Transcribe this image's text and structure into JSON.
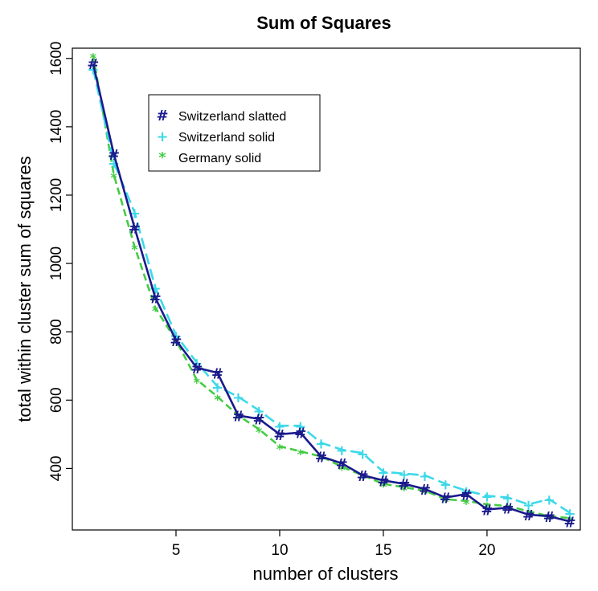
{
  "chart_data": {
    "type": "line",
    "title": "Sum of Squares",
    "xlabel": "number of clusters",
    "ylabel": "total within cluster sum of squares",
    "xlim": [
      0,
      24.5
    ],
    "ylim": [
      220,
      1630
    ],
    "xticks": [
      5,
      10,
      15,
      20
    ],
    "yticks": [
      400,
      600,
      800,
      1000,
      1200,
      1400,
      1600
    ],
    "x": [
      1,
      2,
      3,
      4,
      5,
      6,
      7,
      8,
      9,
      10,
      11,
      12,
      13,
      14,
      15,
      16,
      17,
      18,
      19,
      20,
      21,
      22,
      23,
      24
    ],
    "series": [
      {
        "name": "Switzerland slatted",
        "symbol": "#",
        "color": "#1a1a8c",
        "dash": "solid",
        "values": [
          1585,
          1320,
          1105,
          900,
          775,
          695,
          680,
          555,
          545,
          500,
          505,
          435,
          415,
          380,
          365,
          355,
          340,
          315,
          325,
          280,
          285,
          265,
          260,
          245
        ]
      },
      {
        "name": "Switzerland solid",
        "symbol": "+",
        "color": "#3dd9e8",
        "dash": "long",
        "values": [
          1570,
          1295,
          1150,
          930,
          790,
          710,
          640,
          610,
          570,
          525,
          525,
          475,
          455,
          445,
          390,
          385,
          380,
          355,
          335,
          320,
          315,
          295,
          310,
          270
        ]
      },
      {
        "name": "Germany solid",
        "symbol": "*",
        "color": "#44cc44",
        "dash": "medium",
        "values": [
          1610,
          1260,
          1050,
          870,
          775,
          660,
          610,
          555,
          515,
          465,
          450,
          435,
          405,
          380,
          355,
          345,
          335,
          310,
          305,
          295,
          290,
          275,
          260,
          255
        ]
      }
    ],
    "legend_position": "top-left"
  }
}
